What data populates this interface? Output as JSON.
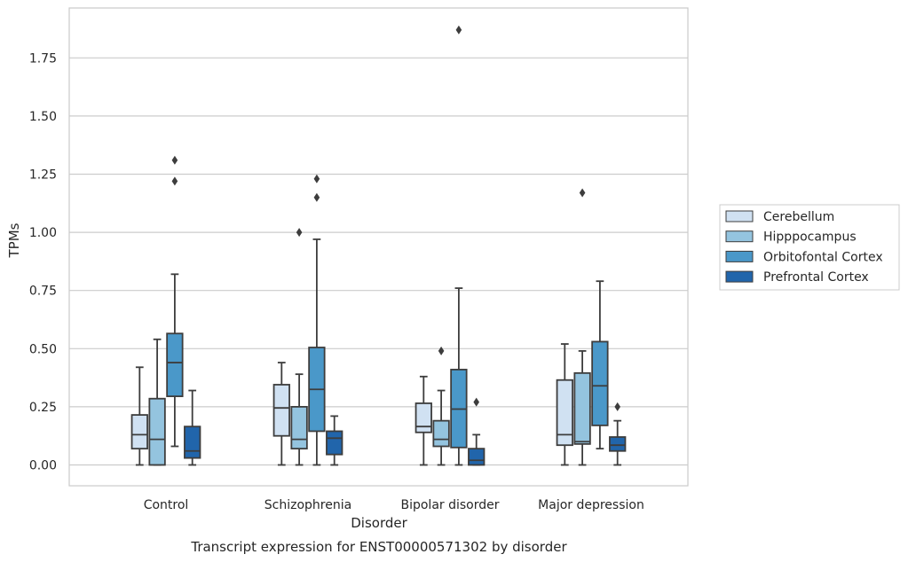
{
  "chart_data": {
    "type": "box",
    "xlabel": "Disorder",
    "ylabel": "TPMs",
    "caption": "Transcript expression for ENST00000571302 by disorder",
    "ylim": [
      -0.09,
      1.96
    ],
    "yticks": [
      0.0,
      0.25,
      0.5,
      0.75,
      1.0,
      1.25,
      1.5,
      1.75
    ],
    "ytick_labels": [
      "0.00",
      "0.25",
      "0.50",
      "0.75",
      "1.00",
      "1.25",
      "1.50",
      "1.75"
    ],
    "grid": "horizontal",
    "legend_position": "right",
    "categories": [
      "Control",
      "Schizophrenia",
      "Bipolar disorder",
      "Major depression"
    ],
    "series": [
      {
        "name": "Cerebellum",
        "color": "#d0e1f2",
        "boxes": [
          {
            "whisker_low": 0.0,
            "q1": 0.07,
            "median": 0.13,
            "q3": 0.215,
            "whisker_high": 0.42,
            "outliers": []
          },
          {
            "whisker_low": 0.0,
            "q1": 0.125,
            "median": 0.245,
            "q3": 0.345,
            "whisker_high": 0.44,
            "outliers": []
          },
          {
            "whisker_low": 0.0,
            "q1": 0.14,
            "median": 0.165,
            "q3": 0.265,
            "whisker_high": 0.38,
            "outliers": []
          },
          {
            "whisker_low": 0.0,
            "q1": 0.085,
            "median": 0.13,
            "q3": 0.365,
            "whisker_high": 0.52,
            "outliers": []
          }
        ]
      },
      {
        "name": "Hipppocampus",
        "color": "#94c4df",
        "boxes": [
          {
            "whisker_low": 0.0,
            "q1": 0.0,
            "median": 0.11,
            "q3": 0.285,
            "whisker_high": 0.54,
            "outliers": []
          },
          {
            "whisker_low": 0.0,
            "q1": 0.07,
            "median": 0.11,
            "q3": 0.25,
            "whisker_high": 0.39,
            "outliers": [
              1.0
            ]
          },
          {
            "whisker_low": 0.0,
            "q1": 0.08,
            "median": 0.11,
            "q3": 0.19,
            "whisker_high": 0.32,
            "outliers": [
              0.49
            ]
          },
          {
            "whisker_low": 0.0,
            "q1": 0.09,
            "median": 0.1,
            "q3": 0.395,
            "whisker_high": 0.49,
            "outliers": [
              1.17
            ]
          }
        ]
      },
      {
        "name": "Orbitofontal Cortex",
        "color": "#4a98c9",
        "boxes": [
          {
            "whisker_low": 0.08,
            "q1": 0.295,
            "median": 0.44,
            "q3": 0.565,
            "whisker_high": 0.82,
            "outliers": [
              1.22,
              1.31
            ]
          },
          {
            "whisker_low": 0.0,
            "q1": 0.145,
            "median": 0.325,
            "q3": 0.505,
            "whisker_high": 0.97,
            "outliers": [
              1.15,
              1.23
            ]
          },
          {
            "whisker_low": 0.0,
            "q1": 0.075,
            "median": 0.24,
            "q3": 0.41,
            "whisker_high": 0.76,
            "outliers": [
              1.87
            ]
          },
          {
            "whisker_low": 0.07,
            "q1": 0.17,
            "median": 0.34,
            "q3": 0.53,
            "whisker_high": 0.79,
            "outliers": []
          }
        ]
      },
      {
        "name": "Prefrontal Cortex",
        "color": "#2165ab",
        "boxes": [
          {
            "whisker_low": 0.0,
            "q1": 0.03,
            "median": 0.06,
            "q3": 0.165,
            "whisker_high": 0.32,
            "outliers": []
          },
          {
            "whisker_low": 0.0,
            "q1": 0.045,
            "median": 0.115,
            "q3": 0.145,
            "whisker_high": 0.21,
            "outliers": []
          },
          {
            "whisker_low": 0.0,
            "q1": 0.0,
            "median": 0.02,
            "q3": 0.07,
            "whisker_high": 0.13,
            "outliers": [
              0.27
            ]
          },
          {
            "whisker_low": 0.0,
            "q1": 0.06,
            "median": 0.085,
            "q3": 0.12,
            "whisker_high": 0.19,
            "outliers": [
              0.25
            ]
          }
        ]
      }
    ]
  }
}
